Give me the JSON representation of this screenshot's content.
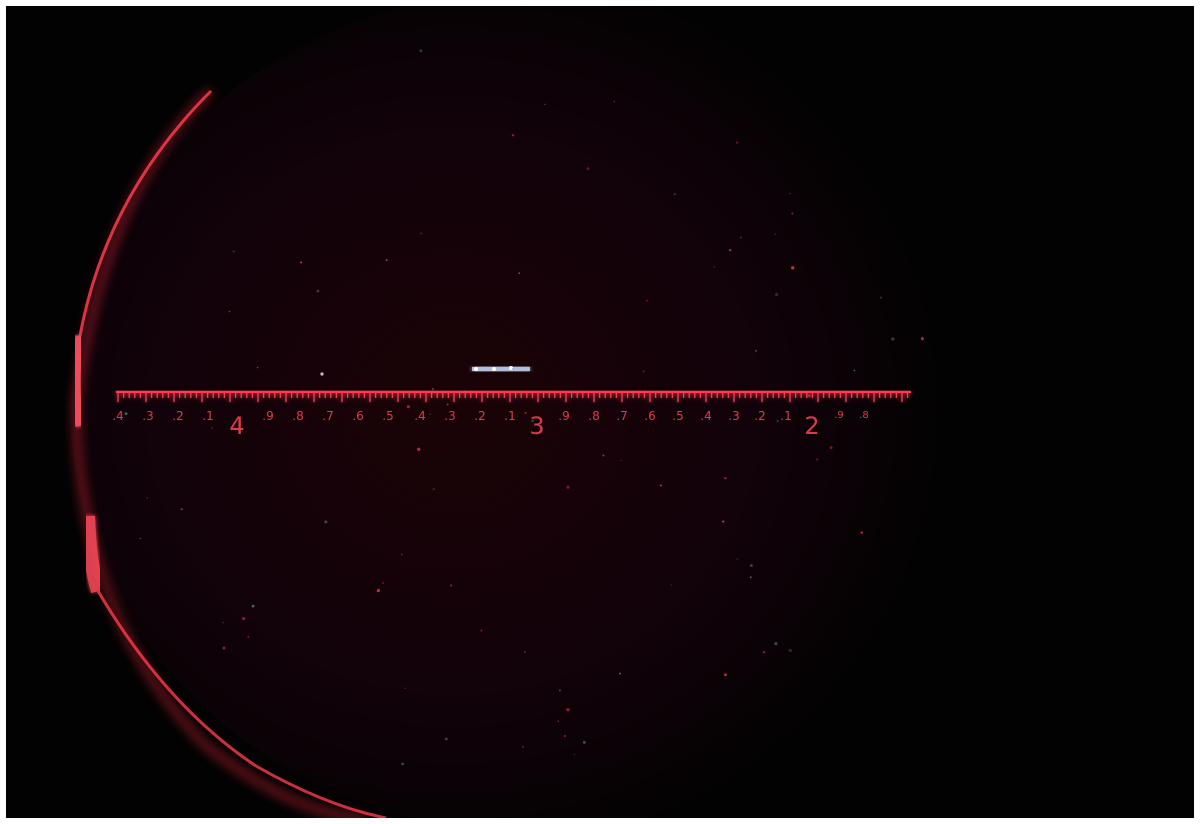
{
  "scene": {
    "colors": {
      "reticle": "#ff3b4f",
      "reticle_dim": "#c72a3a",
      "background": "#020202",
      "vignette": "#2a0509",
      "distant_lights": "#d8e8ff"
    }
  },
  "scale": {
    "major_labels": [
      "4",
      "3",
      "2"
    ],
    "minor_labels_left": [
      ".4",
      ".3",
      ".2",
      ".1"
    ],
    "minor_labels_mid_left": [
      ".9",
      ".8",
      ".7",
      ".6",
      ".5",
      ".4",
      ".3",
      ".2",
      ".1"
    ],
    "minor_labels_mid_right": [
      ".9",
      ".8",
      ".7",
      ".6",
      ".5",
      ".4",
      ".3",
      ".2",
      ".1"
    ],
    "minor_labels_right": [
      ".9",
      ".8"
    ]
  }
}
